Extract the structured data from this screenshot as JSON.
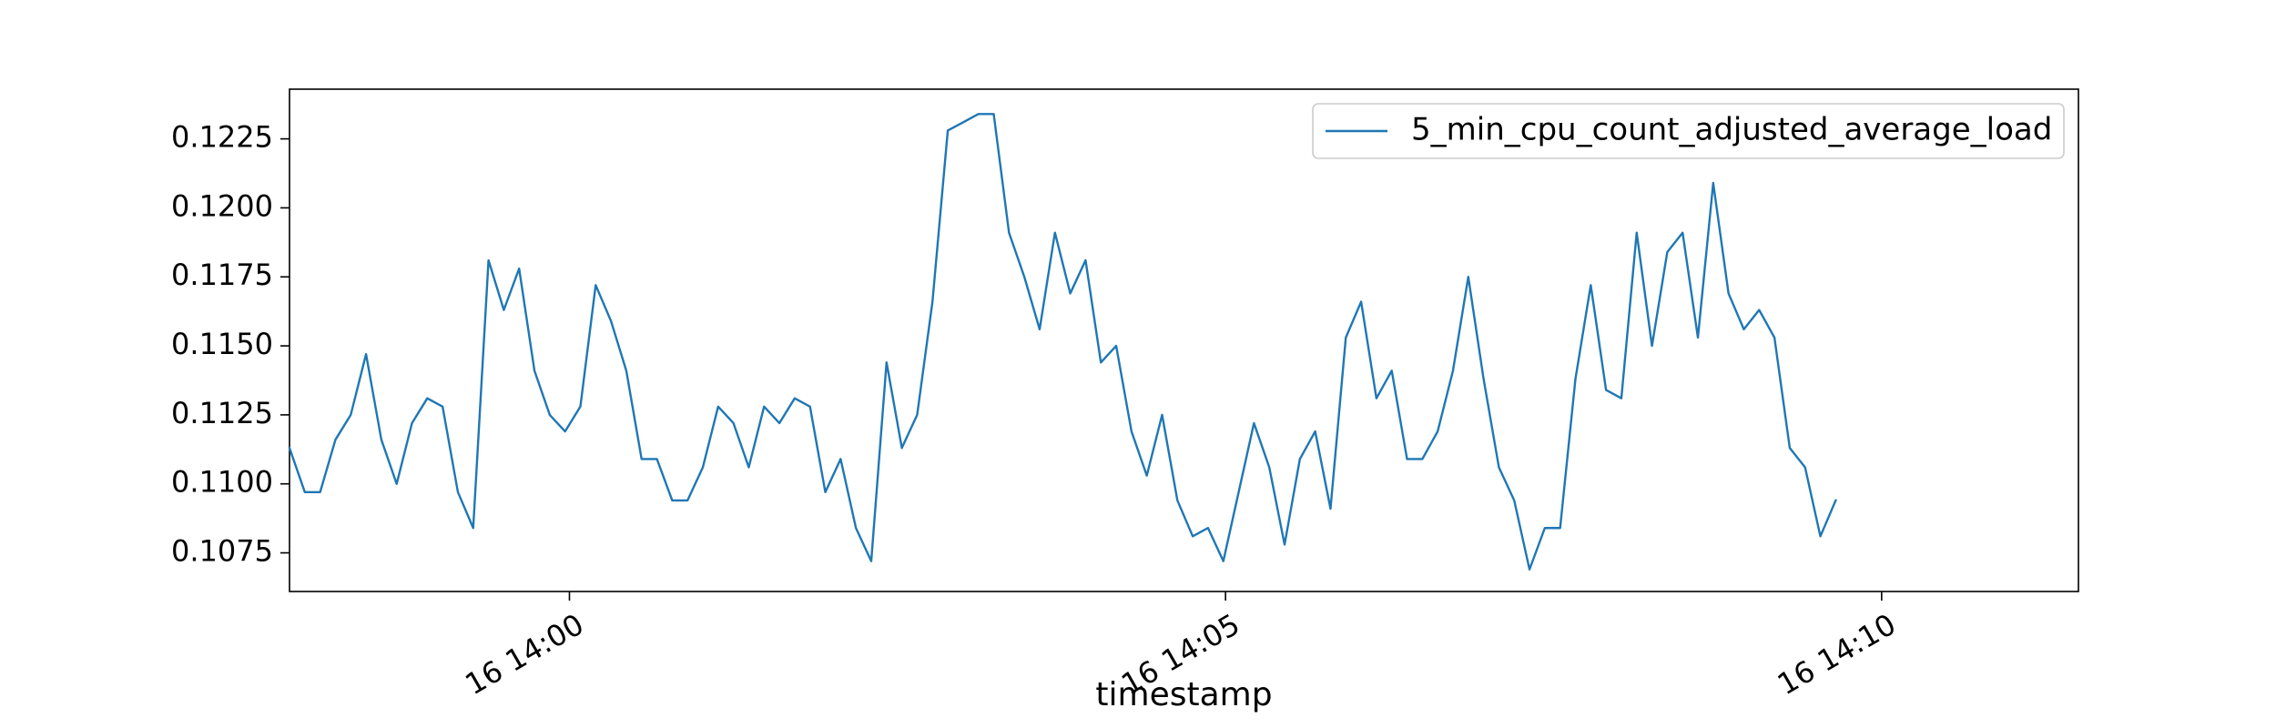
{
  "chart_data": {
    "type": "line",
    "title": "",
    "xlabel": "timestamp",
    "ylabel": "",
    "grid": false,
    "legend_position": "top-right",
    "series_color": "#1f77b4",
    "x_start": "16 13:57:52",
    "x_step_seconds": 7,
    "x_end": "16 14:11:30",
    "xlim": [
      "16 13:57:52",
      "16 14:11:30"
    ],
    "ylim": [
      0.1061,
      0.1243
    ],
    "x_ticks": [
      "16 14:00",
      "16 14:05",
      "16 14:10"
    ],
    "y_ticks": [
      0.1075,
      0.11,
      0.1125,
      0.115,
      0.1175,
      0.12,
      0.1225
    ],
    "y_tick_labels": [
      "0.1075",
      "0.1100",
      "0.1125",
      "0.1150",
      "0.1175",
      "0.1200",
      "0.1225"
    ],
    "series": [
      {
        "name": "5_min_cpu_count_adjusted_average_load",
        "values": [
          0.1113,
          0.1097,
          0.1097,
          0.1116,
          0.1125,
          0.1147,
          0.1116,
          0.11,
          0.1122,
          0.1131,
          0.1128,
          0.1097,
          0.1084,
          0.1181,
          0.1163,
          0.1178,
          0.1141,
          0.1125,
          0.1119,
          0.1128,
          0.1172,
          0.1159,
          0.1141,
          0.1109,
          0.1109,
          0.1094,
          0.1094,
          0.1106,
          0.1128,
          0.1122,
          0.1106,
          0.1128,
          0.1122,
          0.1131,
          0.1128,
          0.1097,
          0.1109,
          0.1084,
          0.1072,
          0.1144,
          0.1113,
          0.1125,
          0.1166,
          0.1228,
          0.1231,
          0.1234,
          0.1234,
          0.1191,
          0.1175,
          0.1156,
          0.1191,
          0.1169,
          0.1181,
          0.1144,
          0.115,
          0.1119,
          0.1103,
          0.1125,
          0.1094,
          0.1081,
          0.1084,
          0.1072,
          0.1097,
          0.1122,
          0.1106,
          0.1078,
          0.1109,
          0.1119,
          0.1091,
          0.1153,
          0.1166,
          0.1131,
          0.1141,
          0.1109,
          0.1109,
          0.1119,
          0.1141,
          0.1175,
          0.1138,
          0.1106,
          0.1094,
          0.1069,
          0.1084,
          0.1084,
          0.1138,
          0.1172,
          0.1134,
          0.1131,
          0.1191,
          0.115,
          0.1184,
          0.1191,
          0.1153,
          0.1209,
          0.1169,
          0.1156,
          0.1163,
          0.1153,
          0.1113,
          0.1106,
          0.1081,
          0.1094
        ]
      }
    ]
  }
}
